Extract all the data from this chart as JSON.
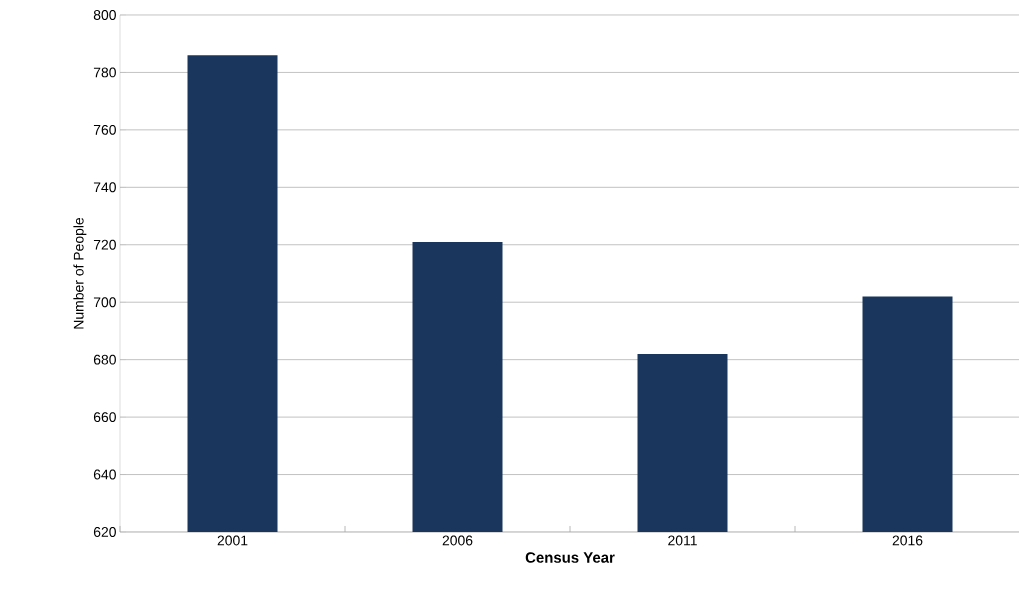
{
  "chart_data": {
    "type": "bar",
    "xlabel": "Census Year",
    "ylabel": "Number of People",
    "categories": [
      "2001",
      "2006",
      "2011",
      "2016"
    ],
    "values": [
      786,
      721,
      682,
      702
    ],
    "color": "#1b365d",
    "ylim": [
      620,
      800
    ],
    "yticks": [
      620,
      640,
      660,
      680,
      700,
      720,
      740,
      760,
      780,
      800
    ],
    "grid": "y"
  }
}
